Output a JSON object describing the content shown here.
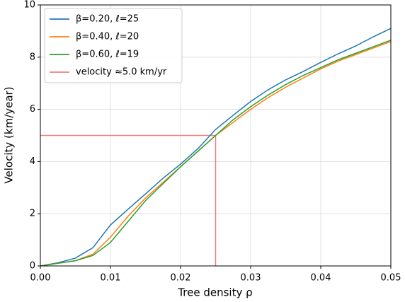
{
  "chart_data": {
    "type": "line",
    "x_label": "Tree density ρ",
    "y_label": "Velocity (km/year)",
    "x": [
      0,
      0.0025,
      0.005,
      0.0075,
      0.01,
      0.0125,
      0.015,
      0.0175,
      0.02,
      0.0225,
      0.025,
      0.0275,
      0.03,
      0.0325,
      0.035,
      0.0375,
      0.04,
      0.0425,
      0.045,
      0.0475,
      0.05
    ],
    "series": [
      {
        "name": "β=0.20, ℓ=25",
        "color": "#1f77b4",
        "values": [
          0,
          0.12,
          0.3,
          0.7,
          1.57,
          2.17,
          2.76,
          3.36,
          3.9,
          4.5,
          5.23,
          5.77,
          6.3,
          6.75,
          7.13,
          7.45,
          7.8,
          8.13,
          8.43,
          8.78,
          9.1
        ]
      },
      {
        "name": "β=0.40, ℓ=20",
        "color": "#ff7f0e",
        "values": [
          0,
          0.1,
          0.2,
          0.45,
          1.1,
          1.9,
          2.6,
          3.2,
          3.8,
          4.4,
          5.0,
          5.5,
          6.0,
          6.45,
          6.85,
          7.2,
          7.55,
          7.85,
          8.1,
          8.35,
          8.6
        ]
      },
      {
        "name": "β=0.60, ℓ=19",
        "color": "#2ca02c",
        "values": [
          0,
          0.1,
          0.2,
          0.4,
          0.9,
          1.7,
          2.5,
          3.15,
          3.8,
          4.4,
          5.0,
          5.6,
          6.1,
          6.55,
          6.95,
          7.3,
          7.6,
          7.9,
          8.15,
          8.4,
          8.65
        ]
      }
    ],
    "reference": {
      "name": "velocity ≈5.0 km/yr",
      "color": "#f08080",
      "x": 0.025,
      "y": 5.0
    },
    "xlim": [
      0,
      0.05
    ],
    "xticks": [
      {
        "value": 0,
        "label": "0.00"
      },
      {
        "value": 0.01,
        "label": "0.01"
      },
      {
        "value": 0.02,
        "label": "0.02"
      },
      {
        "value": 0.03,
        "label": "0.03"
      },
      {
        "value": 0.04,
        "label": "0.04"
      },
      {
        "value": 0.05,
        "label": "0.05"
      }
    ],
    "ylim": [
      0,
      10
    ],
    "yticks": [
      0,
      2,
      4,
      6,
      8,
      10
    ],
    "grid": true,
    "legend": "upper left"
  }
}
